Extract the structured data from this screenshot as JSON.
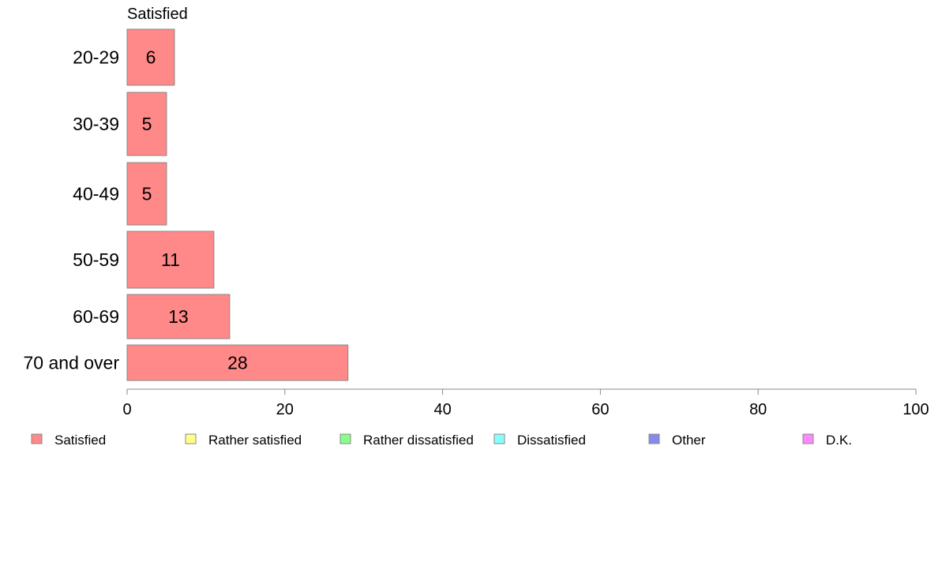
{
  "chart_data": {
    "type": "bar",
    "orientation": "horizontal",
    "series_header": "Satisfied",
    "categories": [
      "20-29",
      "30-39",
      "40-49",
      "50-59",
      "60-69",
      "70 and over"
    ],
    "series": [
      {
        "name": "Satisfied",
        "values": [
          6,
          5,
          5,
          11,
          13,
          28
        ]
      }
    ],
    "data_labels": [
      "6",
      "5",
      "5",
      "11",
      "13",
      "28"
    ],
    "xlim": [
      0,
      100
    ],
    "x_ticks": [
      0,
      20,
      40,
      60,
      80,
      100
    ],
    "x_tick_labels": [
      "0",
      "20",
      "40",
      "60",
      "80",
      "100"
    ],
    "grid": false,
    "legend_position": "bottom",
    "legend": [
      {
        "label": "Satisfied",
        "color": "#ff8888"
      },
      {
        "label": "Rather satisfied",
        "color": "#ffff88"
      },
      {
        "label": "Rather dissatisfied",
        "color": "#88ff88"
      },
      {
        "label": "Dissatisfied",
        "color": "#88ffff"
      },
      {
        "label": "Other",
        "color": "#8888ee"
      },
      {
        "label": "D.K.",
        "color": "#ff88ff"
      }
    ],
    "colors": {
      "bar": "#ff8888",
      "bar_stroke": "#888888",
      "axis": "#888888"
    }
  }
}
